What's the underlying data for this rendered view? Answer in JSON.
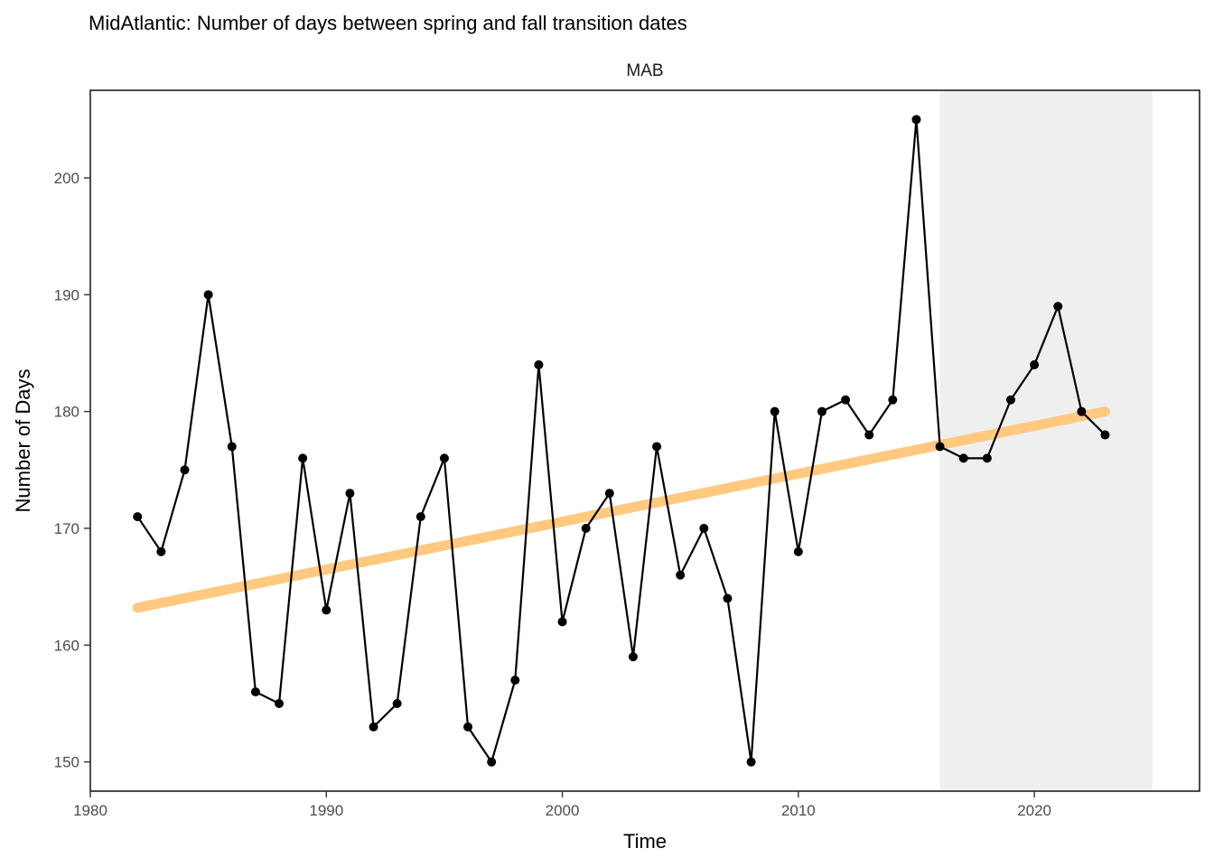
{
  "chart_data": {
    "type": "line",
    "title": "MidAtlantic: Number of days between spring and fall transition dates",
    "facet_label": "MAB",
    "xlabel": "Time",
    "ylabel": "Number of Days",
    "xlim": [
      1980,
      2027
    ],
    "ylim": [
      147.5,
      207.5
    ],
    "x_ticks": [
      1980,
      1990,
      2000,
      2010,
      2020
    ],
    "y_ticks": [
      150,
      160,
      170,
      180,
      190,
      200
    ],
    "grid": false,
    "legend": "none",
    "highlight_region": {
      "x_start": 2016,
      "x_end": 2025,
      "color": "#efefef"
    },
    "series": [
      {
        "color": "#000000",
        "x": [
          1982,
          1983,
          1984,
          1985,
          1986,
          1987,
          1988,
          1989,
          1990,
          1991,
          1992,
          1993,
          1994,
          1995,
          1996,
          1997,
          1998,
          1999,
          2000,
          2001,
          2002,
          2003,
          2004,
          2005,
          2006,
          2007,
          2008,
          2009,
          2010,
          2011,
          2012,
          2013,
          2014,
          2015,
          2016,
          2017,
          2018,
          2019,
          2020,
          2021,
          2022,
          2023
        ],
        "values": [
          171,
          168,
          175,
          190,
          177,
          156,
          155,
          176,
          163,
          173,
          153,
          155,
          171,
          176,
          153,
          150,
          157,
          184,
          162,
          170,
          173,
          159,
          177,
          166,
          170,
          164,
          150,
          180,
          168,
          180,
          181,
          178,
          181,
          205,
          177,
          176,
          176,
          181,
          184,
          189,
          180,
          178
        ]
      }
    ],
    "trend_line": {
      "color": "#ffc97f",
      "x": [
        1982,
        2023
      ],
      "values": [
        163.2,
        180.0
      ]
    }
  }
}
